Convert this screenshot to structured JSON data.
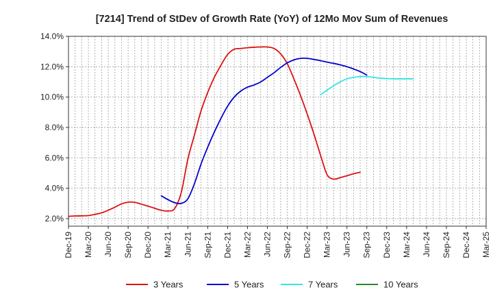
{
  "chart_data": {
    "type": "line",
    "title": "[7214]  Trend of StDev of Growth Rate (YoY) of 12Mo Mov Sum of Revenues",
    "xlabel": "",
    "ylabel": "",
    "ylim": [
      1.5,
      14.0
    ],
    "yticks": [
      2.0,
      4.0,
      6.0,
      8.0,
      10.0,
      12.0,
      14.0
    ],
    "ytick_labels": [
      "2.0%",
      "4.0%",
      "6.0%",
      "8.0%",
      "10.0%",
      "12.0%",
      "14.0%"
    ],
    "x_categories": [
      "Dec-19",
      "Mar-20",
      "Jun-20",
      "Sep-20",
      "Dec-20",
      "Mar-21",
      "Jun-21",
      "Sep-21",
      "Dec-21",
      "Mar-22",
      "Jun-22",
      "Sep-22",
      "Dec-22",
      "Mar-23",
      "Jun-23",
      "Sep-23",
      "Dec-23",
      "Mar-24",
      "Jun-24",
      "Sep-24",
      "Dec-24",
      "Mar-25"
    ],
    "x_minor_per_major": 3,
    "grid": true,
    "legend_position": "bottom",
    "series": [
      {
        "name": "3 Years",
        "color": "#dd1111",
        "start_index": 0,
        "values": [
          2.15,
          2.17,
          2.18,
          2.2,
          2.28,
          2.38,
          2.55,
          2.75,
          2.97,
          3.08,
          3.07,
          2.95,
          2.82,
          2.68,
          2.55,
          2.5,
          2.65,
          3.7,
          5.9,
          7.5,
          9.1,
          10.3,
          11.3,
          12.1,
          12.8,
          13.15,
          13.2,
          13.25,
          13.28,
          13.3,
          13.3,
          13.2,
          12.85,
          12.2,
          11.2,
          10.1,
          8.9,
          7.6,
          6.2,
          4.9,
          4.6,
          4.7,
          4.82,
          4.95,
          5.05
        ]
      },
      {
        "name": "5 Years",
        "color": "#0000cc",
        "start_index": 14,
        "values": [
          3.5,
          3.25,
          3.05,
          3.0,
          3.3,
          4.3,
          5.6,
          6.7,
          7.7,
          8.6,
          9.4,
          10.0,
          10.4,
          10.65,
          10.8,
          11.0,
          11.3,
          11.6,
          11.95,
          12.25,
          12.45,
          12.55,
          12.55,
          12.48,
          12.4,
          12.3,
          12.22,
          12.12,
          12.0,
          11.85,
          11.68,
          11.45
        ]
      },
      {
        "name": "7 Years",
        "color": "#33e5e5",
        "start_index": 38,
        "values": [
          10.15,
          10.45,
          10.75,
          11.0,
          11.2,
          11.3,
          11.35,
          11.35,
          11.3,
          11.25,
          11.22,
          11.2,
          11.2,
          11.2,
          11.2
        ]
      },
      {
        "name": "10 Years",
        "color": "#228B22",
        "start_index": 0,
        "values": []
      }
    ]
  }
}
